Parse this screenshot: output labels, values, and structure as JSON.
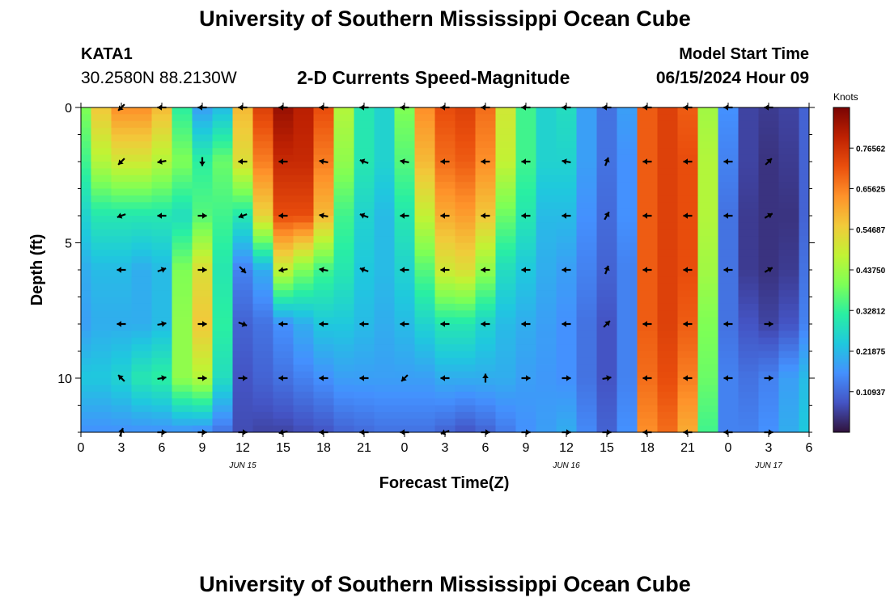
{
  "header": {
    "title": "University of Southern Mississippi Ocean Cube",
    "station_id": "KATA1",
    "coords": "30.2580N  88.2130W",
    "plot_title": "2-D Currents Speed-Magnitude",
    "model_start_label": "Model Start Time",
    "model_start_value": "06/15/2024 Hour 09"
  },
  "footer": {
    "title": "University of Southern Mississippi Ocean Cube"
  },
  "chart_data": {
    "type": "heatmap",
    "title": "2-D Currents Speed-Magnitude",
    "xlabel": "Forecast Time(Z)",
    "ylabel": "Depth (ft)",
    "x_range_hours": [
      0,
      54
    ],
    "y_range_ft": [
      0,
      12
    ],
    "x_ticks": [
      {
        "h": 0,
        "label": "0"
      },
      {
        "h": 3,
        "label": "3"
      },
      {
        "h": 6,
        "label": "6"
      },
      {
        "h": 9,
        "label": "9"
      },
      {
        "h": 12,
        "label": "12"
      },
      {
        "h": 15,
        "label": "15"
      },
      {
        "h": 18,
        "label": "18"
      },
      {
        "h": 21,
        "label": "21"
      },
      {
        "h": 24,
        "label": "0"
      },
      {
        "h": 27,
        "label": "3"
      },
      {
        "h": 30,
        "label": "6"
      },
      {
        "h": 33,
        "label": "9"
      },
      {
        "h": 36,
        "label": "12"
      },
      {
        "h": 39,
        "label": "15"
      },
      {
        "h": 42,
        "label": "18"
      },
      {
        "h": 45,
        "label": "21"
      },
      {
        "h": 48,
        "label": "0"
      },
      {
        "h": 51,
        "label": "3"
      },
      {
        "h": 54,
        "label": "6"
      }
    ],
    "date_labels": [
      {
        "h": 12,
        "label": "JUN 15"
      },
      {
        "h": 36,
        "label": "JUN 16"
      },
      {
        "h": 51,
        "label": "JUN 17"
      }
    ],
    "y_ticks": [
      {
        "ft": 0,
        "label": "0"
      },
      {
        "ft": 5,
        "label": "5"
      },
      {
        "ft": 10,
        "label": "10"
      }
    ],
    "colorbar": {
      "title": "Knots",
      "min": 0.0,
      "max": 0.875,
      "tick_values": [
        0.10937,
        0.21875,
        0.32812,
        0.4375,
        0.54687,
        0.65625,
        0.76562
      ],
      "tick_labels": [
        "0.10937",
        "0.21875",
        "0.32812",
        "0.43750",
        "0.54687",
        "0.65625",
        "0.76562"
      ],
      "colors": [
        "#30123b",
        "#4454c4",
        "#4490fe",
        "#1fc8de",
        "#29efa2",
        "#7dff56",
        "#c1f334",
        "#f1ca3a",
        "#fe922a",
        "#ea4f0d",
        "#be2102",
        "#7a0403"
      ]
    },
    "speed_field": {
      "hours": [
        0,
        1.5,
        3,
        4.5,
        6,
        7.5,
        9,
        10.5,
        12,
        13.5,
        15,
        16.5,
        18,
        19.5,
        21,
        22.5,
        24,
        25.5,
        27,
        28.5,
        30,
        31.5,
        33,
        34.5,
        36,
        37.5,
        39,
        40.5,
        42,
        43.5,
        45,
        46.5,
        48,
        49.5,
        51,
        52.5,
        54
      ],
      "depths_ft": [
        0,
        2,
        4,
        6,
        8,
        10,
        12
      ],
      "knots": [
        [
          0.4,
          0.56,
          0.64,
          0.64,
          0.58,
          0.32,
          0.18,
          0.22,
          0.58,
          0.74,
          0.84,
          0.8,
          0.72,
          0.46,
          0.3,
          0.26,
          0.4,
          0.64,
          0.72,
          0.74,
          0.68,
          0.5,
          0.34,
          0.26,
          0.28,
          0.18,
          0.12,
          0.18,
          0.7,
          0.74,
          0.7,
          0.44,
          0.16,
          0.06,
          0.05,
          0.06,
          0.1
        ],
        [
          0.34,
          0.46,
          0.5,
          0.5,
          0.46,
          0.4,
          0.32,
          0.38,
          0.52,
          0.66,
          0.78,
          0.78,
          0.66,
          0.42,
          0.3,
          0.26,
          0.36,
          0.58,
          0.68,
          0.7,
          0.64,
          0.48,
          0.34,
          0.26,
          0.26,
          0.18,
          0.12,
          0.16,
          0.7,
          0.74,
          0.72,
          0.46,
          0.14,
          0.06,
          0.04,
          0.05,
          0.1
        ],
        [
          0.26,
          0.3,
          0.3,
          0.3,
          0.3,
          0.28,
          0.36,
          0.34,
          0.3,
          0.54,
          0.72,
          0.72,
          0.58,
          0.34,
          0.26,
          0.22,
          0.3,
          0.48,
          0.6,
          0.62,
          0.56,
          0.38,
          0.3,
          0.22,
          0.22,
          0.16,
          0.11,
          0.16,
          0.7,
          0.74,
          0.72,
          0.46,
          0.12,
          0.05,
          0.04,
          0.04,
          0.1
        ],
        [
          0.2,
          0.22,
          0.22,
          0.2,
          0.22,
          0.4,
          0.52,
          0.3,
          0.14,
          0.2,
          0.48,
          0.4,
          0.34,
          0.3,
          0.24,
          0.22,
          0.26,
          0.36,
          0.5,
          0.52,
          0.42,
          0.28,
          0.24,
          0.2,
          0.18,
          0.14,
          0.1,
          0.14,
          0.7,
          0.74,
          0.72,
          0.44,
          0.12,
          0.05,
          0.04,
          0.05,
          0.12
        ],
        [
          0.18,
          0.2,
          0.2,
          0.2,
          0.22,
          0.42,
          0.56,
          0.32,
          0.1,
          0.12,
          0.16,
          0.2,
          0.24,
          0.24,
          0.22,
          0.2,
          0.22,
          0.26,
          0.3,
          0.3,
          0.26,
          0.22,
          0.2,
          0.18,
          0.16,
          0.12,
          0.08,
          0.14,
          0.7,
          0.74,
          0.7,
          0.4,
          0.12,
          0.08,
          0.06,
          0.08,
          0.14
        ],
        [
          0.24,
          0.24,
          0.26,
          0.3,
          0.32,
          0.42,
          0.46,
          0.28,
          0.08,
          0.1,
          0.12,
          0.14,
          0.16,
          0.18,
          0.18,
          0.18,
          0.18,
          0.18,
          0.2,
          0.2,
          0.2,
          0.2,
          0.18,
          0.17,
          0.16,
          0.12,
          0.08,
          0.14,
          0.68,
          0.72,
          0.66,
          0.38,
          0.14,
          0.12,
          0.14,
          0.18,
          0.22
        ],
        [
          0.16,
          0.16,
          0.16,
          0.16,
          0.16,
          0.16,
          0.15,
          0.12,
          0.07,
          0.06,
          0.06,
          0.07,
          0.08,
          0.1,
          0.11,
          0.12,
          0.12,
          0.12,
          0.1,
          0.08,
          0.1,
          0.13,
          0.16,
          0.18,
          0.2,
          0.15,
          0.1,
          0.16,
          0.64,
          0.68,
          0.6,
          0.34,
          0.14,
          0.14,
          0.16,
          0.2,
          0.24
        ]
      ]
    },
    "vectors": {
      "hours": [
        3,
        6,
        9,
        12,
        15,
        18,
        21,
        24,
        27,
        30,
        33,
        36,
        39,
        42,
        45,
        48,
        51
      ],
      "depths_ft": [
        0,
        2,
        4,
        6,
        8,
        10,
        12
      ],
      "direction_deg": [
        [
          225,
          270,
          270,
          270,
          270,
          270,
          270,
          270,
          270,
          270,
          270,
          270,
          270,
          270,
          270,
          270,
          270
        ],
        [
          225,
          260,
          180,
          270,
          270,
          280,
          290,
          280,
          270,
          270,
          270,
          280,
          20,
          270,
          270,
          270,
          45
        ],
        [
          250,
          270,
          90,
          250,
          270,
          280,
          290,
          270,
          270,
          270,
          270,
          270,
          30,
          270,
          270,
          270,
          60
        ],
        [
          270,
          70,
          90,
          135,
          260,
          280,
          290,
          270,
          270,
          270,
          270,
          270,
          20,
          270,
          270,
          270,
          60
        ],
        [
          270,
          80,
          90,
          110,
          270,
          270,
          270,
          270,
          270,
          270,
          270,
          270,
          45,
          270,
          270,
          270,
          90
        ],
        [
          315,
          80,
          90,
          90,
          270,
          270,
          270,
          225,
          270,
          0,
          90,
          90,
          80,
          270,
          270,
          270,
          90
        ],
        [
          20,
          90,
          90,
          90,
          260,
          270,
          270,
          270,
          250,
          90,
          90,
          90,
          90,
          270,
          270,
          270,
          90
        ]
      ]
    }
  }
}
